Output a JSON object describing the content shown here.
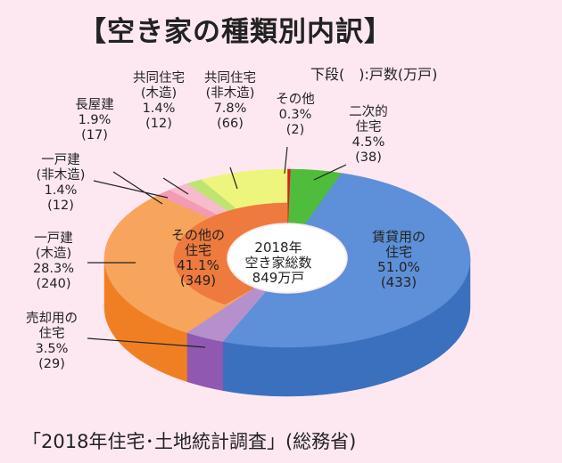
{
  "title": "【空き家の種類別内訳】",
  "unit_note": "下段(　):戸数(万戸)",
  "source": "「2018年住宅･土地統計調査」(総務省)",
  "chart_data": {
    "type": "pie",
    "subtype": "3d-donut",
    "center_label": [
      "2018年",
      "空き家総数",
      "849万戸"
    ],
    "total": 849,
    "slices": [
      {
        "name": [
          "その他"
        ],
        "percent": "0.3%",
        "count": "(2)",
        "value": 0.3,
        "color": "#e8141c",
        "side": "#b00d12"
      },
      {
        "name": [
          "二次的",
          "住宅"
        ],
        "percent": "4.5%",
        "count": "(38)",
        "value": 4.5,
        "color": "#4fbc3c",
        "side": "#3a9a2a"
      },
      {
        "name": [
          "賃貸用の",
          "住宅"
        ],
        "percent": "51.0%",
        "count": "(433)",
        "value": 51.0,
        "color": "#5d90d8",
        "side": "#3b70bf"
      },
      {
        "name": [
          "売却用の",
          "住宅"
        ],
        "percent": "3.5%",
        "count": "(29)",
        "value": 3.5,
        "color": "#b690cc",
        "side": "#9058b0"
      },
      {
        "name": [
          "一戸建",
          "(木造)"
        ],
        "percent": "28.3%",
        "count": "(240)",
        "value": 28.3,
        "color": "#f7a55c",
        "side": "#f07f24"
      },
      {
        "name": [
          "一戸建",
          "(非木造)"
        ],
        "percent": "1.4%",
        "count": "(12)",
        "value": 1.4,
        "color": "#f39ab4",
        "side": "#e07898"
      },
      {
        "name": [
          "長屋建"
        ],
        "percent": "1.9%",
        "count": "(17)",
        "value": 1.9,
        "color": "#f7bccb",
        "side": "#e898aa"
      },
      {
        "name": [
          "共同住宅",
          "(木造)"
        ],
        "percent": "1.4%",
        "count": "(12)",
        "value": 1.4,
        "color": "#bfe472",
        "side": "#98c450"
      },
      {
        "name": [
          "共同住宅",
          "(非木造)"
        ],
        "percent": "7.8%",
        "count": "(66)",
        "value": 7.8,
        "color": "#eef57c",
        "side": "#d0d858"
      }
    ],
    "group": {
      "name": [
        "その他の",
        "住宅"
      ],
      "percent": "41.1%",
      "count": "(349)",
      "value": 41.1,
      "color": "#ee7a3e"
    }
  }
}
